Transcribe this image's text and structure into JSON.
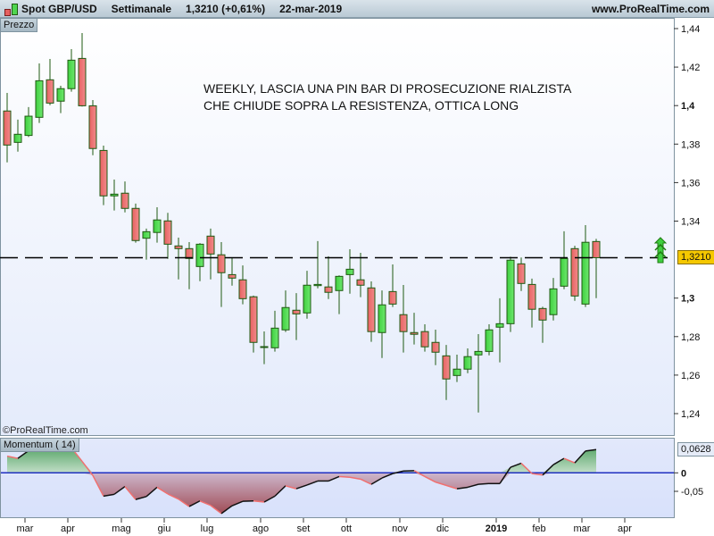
{
  "header": {
    "instrument": "Spot GBP/USD",
    "timeframe": "Settimanale",
    "last": "1,3210 (+0,61%)",
    "date": "22-mar-2019",
    "site": "www.ProRealTime.com"
  },
  "price_panel": {
    "label": "Prezzo",
    "watermark": "©ProRealTime.com",
    "annotation_line1": "WEEKLY, LASCIA UNA PIN BAR DI PROSECUZIONE RIALZISTA",
    "annotation_line2": "CHE CHIUDE SOPRA LA RESISTENZA, OTTICA LONG",
    "current_price_label": "1,3210",
    "resistance_level": 1.321,
    "colors": {
      "up": "#4fd64f",
      "down": "#ec6f6f",
      "outline": "#1f5a12",
      "price_box": "#f5c800"
    },
    "yticks": [
      {
        "v": 1.44,
        "t": "1,44",
        "bold": false
      },
      {
        "v": 1.42,
        "t": "1,42",
        "bold": false
      },
      {
        "v": 1.4,
        "t": "1,4",
        "bold": true
      },
      {
        "v": 1.38,
        "t": "1,38",
        "bold": false
      },
      {
        "v": 1.36,
        "t": "1,36",
        "bold": false
      },
      {
        "v": 1.34,
        "t": "1,34",
        "bold": false
      },
      {
        "v": 1.3,
        "t": "1,3",
        "bold": true
      },
      {
        "v": 1.28,
        "t": "1,28",
        "bold": false
      },
      {
        "v": 1.26,
        "t": "1,26",
        "bold": false
      },
      {
        "v": 1.24,
        "t": "1,24",
        "bold": false
      }
    ]
  },
  "momentum_panel": {
    "label": "Momentum ( 14)",
    "current_label": "0,0628",
    "yticks": [
      {
        "v": 0,
        "t": "0",
        "bold": true
      },
      {
        "v": -0.05,
        "t": "-0,05",
        "bold": false
      }
    ]
  },
  "xaxis": {
    "months": [
      {
        "t": "mar",
        "i": 1
      },
      {
        "t": "apr",
        "i": 5
      },
      {
        "t": "mag",
        "i": 10
      },
      {
        "t": "giu",
        "i": 14
      },
      {
        "t": "lug",
        "i": 18
      },
      {
        "t": "ago",
        "i": 23
      },
      {
        "t": "set",
        "i": 27
      },
      {
        "t": "ott",
        "i": 31
      },
      {
        "t": "nov",
        "i": 36
      },
      {
        "t": "dic",
        "i": 40
      },
      {
        "t": "2019",
        "i": 45,
        "bold": true
      },
      {
        "t": "feb",
        "i": 49
      },
      {
        "t": "mar",
        "i": 53
      },
      {
        "t": "apr",
        "i": 57
      }
    ]
  },
  "chart_data": {
    "type": "candlestick",
    "ylim": [
      1.235,
      1.445
    ],
    "ohlc": [
      [
        1.3972,
        1.4066,
        1.3705,
        1.3795
      ],
      [
        1.3809,
        1.3927,
        1.3761,
        1.3851
      ],
      [
        1.3845,
        1.3992,
        1.3837,
        1.3945
      ],
      [
        1.3939,
        1.4219,
        1.391,
        1.4129
      ],
      [
        1.4134,
        1.4242,
        1.4002,
        1.4013
      ],
      [
        1.4023,
        1.4103,
        1.3961,
        1.4088
      ],
      [
        1.4088,
        1.4293,
        1.4072,
        1.4236
      ],
      [
        1.4245,
        1.4377,
        1.3995,
        1.3999
      ],
      [
        1.3999,
        1.4029,
        1.3742,
        1.3777
      ],
      [
        1.3767,
        1.3792,
        1.3483,
        1.3531
      ],
      [
        1.3531,
        1.3616,
        1.3455,
        1.354
      ],
      [
        1.3545,
        1.3606,
        1.3445,
        1.3466
      ],
      [
        1.3466,
        1.3491,
        1.3288,
        1.3299
      ],
      [
        1.3311,
        1.3361,
        1.32,
        1.3345
      ],
      [
        1.3341,
        1.3472,
        1.3288,
        1.3406
      ],
      [
        1.3401,
        1.3443,
        1.3204,
        1.328
      ],
      [
        1.3271,
        1.3314,
        1.3097,
        1.3257
      ],
      [
        1.3257,
        1.3291,
        1.3046,
        1.3206
      ],
      [
        1.3164,
        1.3286,
        1.3088,
        1.328
      ],
      [
        1.3322,
        1.3361,
        1.3097,
        1.3229
      ],
      [
        1.3225,
        1.3291,
        1.2954,
        1.3132
      ],
      [
        1.3122,
        1.3212,
        1.3065,
        1.3104
      ],
      [
        1.3095,
        1.317,
        1.2968,
        1.2997
      ],
      [
        1.3007,
        1.3013,
        1.2717,
        1.277
      ],
      [
        1.2747,
        1.2827,
        1.2657,
        1.2748
      ],
      [
        1.2742,
        1.2934,
        1.2722,
        1.2844
      ],
      [
        1.2835,
        1.304,
        1.2824,
        1.2951
      ],
      [
        1.2937,
        1.3026,
        1.2782,
        1.2918
      ],
      [
        1.2923,
        1.3142,
        1.2893,
        1.3067
      ],
      [
        1.3065,
        1.3296,
        1.3051,
        1.3071
      ],
      [
        1.3058,
        1.3217,
        1.2995,
        1.303
      ],
      [
        1.3039,
        1.3118,
        1.2917,
        1.3113
      ],
      [
        1.3122,
        1.3254,
        1.3023,
        1.315
      ],
      [
        1.3095,
        1.3235,
        1.3005,
        1.3067
      ],
      [
        1.3053,
        1.3087,
        1.2773,
        1.2826
      ],
      [
        1.2821,
        1.304,
        1.2689,
        1.2965
      ],
      [
        1.3034,
        1.3175,
        1.2954,
        1.2969
      ],
      [
        1.2914,
        1.3068,
        1.2717,
        1.2826
      ],
      [
        1.2821,
        1.2924,
        1.2759,
        1.2812
      ],
      [
        1.2826,
        1.2864,
        1.2722,
        1.2747
      ],
      [
        1.277,
        1.2836,
        1.2652,
        1.2719
      ],
      [
        1.27,
        1.2757,
        1.2471,
        1.258
      ],
      [
        1.2598,
        1.2706,
        1.2564,
        1.2631
      ],
      [
        1.2631,
        1.2739,
        1.261,
        1.2696
      ],
      [
        1.2705,
        1.2813,
        1.2406,
        1.2723
      ],
      [
        1.2723,
        1.2864,
        1.2703,
        1.2835
      ],
      [
        1.2849,
        1.2999,
        1.2666,
        1.2867
      ],
      [
        1.2867,
        1.3215,
        1.2824,
        1.3197
      ],
      [
        1.3178,
        1.3211,
        1.3037,
        1.3076
      ],
      [
        1.3071,
        1.3101,
        1.2847,
        1.2942
      ],
      [
        1.2946,
        1.2955,
        1.2768,
        1.2886
      ],
      [
        1.2914,
        1.3105,
        1.2884,
        1.3048
      ],
      [
        1.3062,
        1.3347,
        1.3046,
        1.3206
      ],
      [
        1.3257,
        1.3272,
        1.2986,
        1.3011
      ],
      [
        1.2969,
        1.3379,
        1.2954,
        1.329
      ],
      [
        1.3294,
        1.3308,
        1.3,
        1.321
      ]
    ],
    "momentum": {
      "period": 14,
      "ylim": [
        -0.125,
        0.09
      ],
      "values": [
        0.045,
        0.039,
        0.06,
        0.068,
        0.068,
        0.061,
        0.068,
        0.031,
        -0.007,
        -0.063,
        -0.058,
        -0.037,
        -0.072,
        -0.064,
        -0.039,
        -0.057,
        -0.071,
        -0.091,
        -0.076,
        -0.088,
        -0.11,
        -0.089,
        -0.077,
        -0.076,
        -0.079,
        -0.063,
        -0.035,
        -0.043,
        -0.033,
        -0.022,
        -0.022,
        -0.01,
        -0.012,
        -0.017,
        -0.031,
        -0.014,
        -0.002,
        0.005,
        0.006,
        -0.01,
        -0.025,
        -0.034,
        -0.043,
        -0.039,
        -0.031,
        -0.029,
        -0.029,
        0.015,
        0.026,
        -0.002,
        -0.006,
        0.022,
        0.039,
        0.027,
        0.059,
        0.0628
      ]
    }
  }
}
